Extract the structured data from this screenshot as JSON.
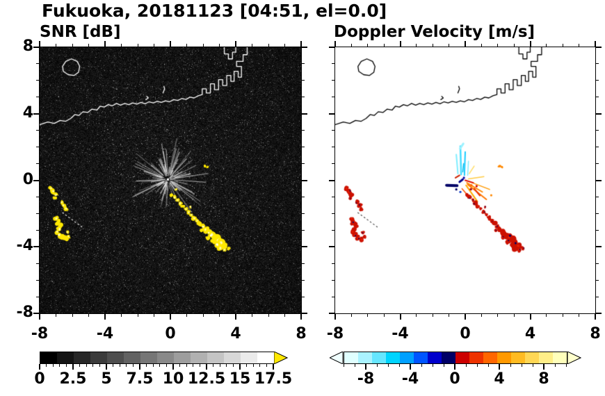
{
  "title": "Fukuoka, 20181123 [04:51, el=0.0]",
  "panels": {
    "snr": {
      "title": "SNR [dB]"
    },
    "velocity": {
      "title": "Doppler Velocity [m/s]"
    }
  },
  "axes": {
    "xlim": [
      -8,
      8
    ],
    "ylim": [
      -8,
      8
    ],
    "x_tick_values": [
      -8,
      -4,
      0,
      4,
      8
    ],
    "x_tick_labels": [
      "-8",
      "-4",
      "0",
      "4",
      "8"
    ],
    "y_tick_values": [
      8,
      4,
      0,
      -4,
      -8
    ],
    "y_tick_labels": [
      "8",
      "4",
      "0",
      "-4",
      "-8"
    ],
    "minor_tick_step": 1
  },
  "colorbars": {
    "snr": {
      "min": 0,
      "max": 17.5,
      "tick_values": [
        0,
        2.5,
        5,
        7.5,
        10,
        12.5,
        15,
        17.5
      ],
      "tick_labels": [
        "0",
        "2.5",
        "5",
        "7.5",
        "10",
        "12.5",
        "15",
        "17.5"
      ],
      "minor_step": 0.5,
      "band_count": 14,
      "start_color": "#000000",
      "end_color": "#ffffff",
      "over_arrow_color": "#ffe800"
    },
    "velocity": {
      "min": -10,
      "max": 10,
      "tick_values": [
        -8,
        -4,
        0,
        4,
        8
      ],
      "tick_labels": [
        "-8",
        "-4",
        "0",
        "4",
        "8"
      ],
      "minor_step": 1,
      "bands": [
        "#e0ffff",
        "#aaf2ff",
        "#66e6ff",
        "#00d4ff",
        "#00a0ff",
        "#0055ff",
        "#0000cc",
        "#000066",
        "#cc0000",
        "#ee3300",
        "#ff6600",
        "#ff9900",
        "#ffbb22",
        "#ffd755",
        "#ffee88",
        "#ffffbb"
      ],
      "under_arrow_color": "#f0ffff",
      "over_arrow_color": "#ffffcc"
    }
  },
  "chart_data": {
    "type": "heatmap",
    "site": "Fukuoka",
    "date": "20181123",
    "time": "04:51",
    "elevation": 0.0,
    "panels": [
      {
        "name": "SNR [dB]",
        "units": "dB",
        "range": [
          0,
          17.5
        ],
        "background": "#000000",
        "coast_color": "#ffffff",
        "echo_color": "#ffe800"
      },
      {
        "name": "Doppler Velocity [m/s]",
        "units": "m/s",
        "range": [
          -10,
          10
        ],
        "background": "#ffffff",
        "coast_color": "#000000",
        "echo_color": "#cc1100"
      }
    ],
    "radar_center": [
      -0.15,
      0.05
    ],
    "coastline": [
      [
        [
          -8.0,
          3.35
        ],
        [
          -7.5,
          3.5
        ],
        [
          -7.1,
          3.42
        ],
        [
          -6.75,
          3.6
        ],
        [
          -6.4,
          3.55
        ],
        [
          -6.1,
          3.72
        ],
        [
          -5.85,
          3.95
        ],
        [
          -5.6,
          3.9
        ],
        [
          -5.35,
          4.12
        ],
        [
          -5.05,
          4.08
        ],
        [
          -4.8,
          4.28
        ],
        [
          -4.5,
          4.22
        ],
        [
          -4.3,
          4.45
        ],
        [
          -4.05,
          4.4
        ],
        [
          -3.8,
          4.55
        ],
        [
          -3.55,
          4.48
        ],
        [
          -3.3,
          4.62
        ],
        [
          -3.05,
          4.52
        ],
        [
          -2.8,
          4.62
        ],
        [
          -2.55,
          4.55
        ],
        [
          -2.3,
          4.65
        ],
        [
          -2.05,
          4.58
        ],
        [
          -1.8,
          4.68
        ],
        [
          -1.55,
          4.6
        ],
        [
          -1.3,
          4.72
        ],
        [
          -1.05,
          4.65
        ],
        [
          -0.8,
          4.75
        ],
        [
          -0.55,
          4.68
        ],
        [
          -0.3,
          4.78
        ],
        [
          -0.05,
          4.72
        ],
        [
          0.2,
          4.85
        ],
        [
          0.45,
          4.8
        ],
        [
          0.7,
          4.92
        ],
        [
          0.95,
          4.86
        ],
        [
          1.2,
          5.0
        ],
        [
          1.45,
          4.95
        ],
        [
          1.7,
          5.08
        ],
        [
          1.95,
          5.15
        ],
        [
          1.95,
          5.5
        ],
        [
          2.2,
          5.5
        ],
        [
          2.2,
          5.25
        ],
        [
          2.45,
          5.25
        ],
        [
          2.45,
          5.8
        ],
        [
          2.7,
          5.8
        ],
        [
          2.7,
          5.45
        ],
        [
          2.95,
          5.45
        ],
        [
          2.95,
          6.05
        ],
        [
          3.2,
          6.05
        ],
        [
          3.2,
          5.7
        ],
        [
          3.45,
          5.7
        ],
        [
          3.45,
          6.3
        ],
        [
          3.7,
          6.3
        ],
        [
          3.7,
          5.95
        ],
        [
          3.9,
          5.95
        ],
        [
          3.9,
          6.55
        ],
        [
          4.15,
          6.55
        ],
        [
          4.15,
          6.2
        ],
        [
          4.35,
          6.2
        ],
        [
          4.35,
          6.85
        ],
        [
          4.05,
          6.85
        ],
        [
          4.05,
          7.15
        ],
        [
          4.45,
          7.15
        ],
        [
          4.45,
          7.55
        ],
        [
          4.7,
          7.55
        ],
        [
          4.7,
          8.0
        ]
      ],
      [
        [
          -6.55,
          6.55
        ],
        [
          -6.25,
          6.35
        ],
        [
          -5.9,
          6.3
        ],
        [
          -5.62,
          6.5
        ],
        [
          -5.55,
          6.85
        ],
        [
          -5.7,
          7.15
        ],
        [
          -6.05,
          7.3
        ],
        [
          -6.4,
          7.15
        ],
        [
          -6.6,
          6.85
        ],
        [
          -6.55,
          6.55
        ]
      ],
      [
        [
          -0.45,
          5.25
        ],
        [
          -0.35,
          5.5
        ],
        [
          -0.4,
          5.65
        ]
      ],
      [
        [
          -1.5,
          4.85
        ],
        [
          -1.35,
          4.95
        ],
        [
          -1.45,
          5.05
        ]
      ],
      [
        [
          3.3,
          8.0
        ],
        [
          3.3,
          7.6
        ],
        [
          3.55,
          7.6
        ],
        [
          3.55,
          7.3
        ],
        [
          3.8,
          7.3
        ],
        [
          3.8,
          7.7
        ],
        [
          4.0,
          7.7
        ],
        [
          4.0,
          8.0
        ]
      ]
    ],
    "echo_cluster_west": [
      [
        -7.3,
        -0.5,
        0.13
      ],
      [
        -7.15,
        -0.68,
        0.15
      ],
      [
        -7.0,
        -0.88,
        0.13
      ],
      [
        -7.08,
        -1.08,
        0.11
      ],
      [
        -6.65,
        -1.32,
        0.11
      ],
      [
        -6.5,
        -1.5,
        0.13
      ],
      [
        -6.38,
        -1.7,
        0.12
      ],
      [
        -6.98,
        -2.3,
        0.13
      ],
      [
        -6.88,
        -2.52,
        0.16
      ],
      [
        -6.7,
        -2.72,
        0.15
      ],
      [
        -6.78,
        -2.94,
        0.14
      ],
      [
        -6.92,
        -3.1,
        0.13
      ],
      [
        -6.78,
        -3.3,
        0.15
      ],
      [
        -6.58,
        -3.46,
        0.16
      ],
      [
        -6.36,
        -3.56,
        0.13
      ],
      [
        -6.22,
        -3.38,
        0.1
      ],
      [
        -6.3,
        -3.12,
        0.1
      ]
    ],
    "echo_band_main": [
      [
        0.08,
        -0.88,
        0.1
      ],
      [
        0.26,
        -1.04,
        0.12
      ],
      [
        0.44,
        -1.2,
        0.1
      ],
      [
        0.6,
        -1.38,
        0.13
      ],
      [
        0.78,
        -1.54,
        0.11
      ],
      [
        0.95,
        -1.73,
        0.1
      ],
      [
        1.12,
        -1.93,
        0.12
      ],
      [
        1.3,
        -2.08,
        0.1
      ],
      [
        1.46,
        -2.28,
        0.13
      ],
      [
        1.64,
        -2.44,
        0.11
      ],
      [
        1.82,
        -2.63,
        0.14
      ],
      [
        2.0,
        -2.79,
        0.12
      ],
      [
        2.16,
        -2.98,
        0.16
      ],
      [
        2.34,
        -3.13,
        0.18
      ],
      [
        2.54,
        -3.28,
        0.2
      ],
      [
        2.74,
        -3.44,
        0.22
      ],
      [
        2.94,
        -3.6,
        0.2
      ],
      [
        3.1,
        -3.78,
        0.22
      ],
      [
        3.26,
        -3.94,
        0.18
      ],
      [
        2.62,
        -3.68,
        0.15
      ],
      [
        2.86,
        -3.88,
        0.17
      ],
      [
        3.06,
        -4.08,
        0.16
      ],
      [
        3.3,
        -4.18,
        0.12
      ],
      [
        3.56,
        -4.08,
        0.1
      ],
      [
        2.3,
        -3.44,
        0.12
      ],
      [
        1.9,
        -3.0,
        0.1
      ],
      [
        0.35,
        -0.55,
        0.07
      ],
      [
        1.22,
        -1.6,
        0.07
      ]
    ],
    "extra_echoes": [
      [
        2.1,
        0.85,
        0.08
      ],
      [
        2.26,
        0.8,
        0.07
      ]
    ],
    "dotted_track": [
      [
        -6.6,
        -1.95
      ],
      [
        -5.35,
        -2.85
      ]
    ],
    "velocity_streaks": [
      [
        -0.25,
        0.35,
        -0.3,
        2.05,
        "#45ddff",
        2.5
      ],
      [
        -0.45,
        0.4,
        -0.55,
        1.55,
        "#7feeff",
        2
      ],
      [
        -0.05,
        0.3,
        0.0,
        1.7,
        "#18ccff",
        2
      ],
      [
        0.15,
        0.3,
        0.2,
        1.15,
        "#7feeff",
        1.5
      ],
      [
        -0.32,
        1.9,
        -0.12,
        2.2,
        "#9cf2ff",
        3
      ],
      [
        -0.15,
        0.5,
        -0.1,
        1.0,
        "#00bbee",
        1.5
      ],
      [
        0.1,
        -0.15,
        1.05,
        -0.7,
        "#ff8800",
        2
      ],
      [
        0.15,
        -0.25,
        1.3,
        -1.15,
        "#ff7700",
        2
      ],
      [
        0.05,
        -0.3,
        0.75,
        -1.28,
        "#ffaa00",
        2
      ],
      [
        0.3,
        -0.1,
        1.5,
        -0.55,
        "#ff9900",
        1.5
      ],
      [
        0.2,
        0.08,
        1.15,
        0.22,
        "#ffcc44",
        1.5
      ],
      [
        0.25,
        0.4,
        0.55,
        0.85,
        "#ffdd66",
        1.5
      ],
      [
        -1.15,
        -0.3,
        -0.5,
        -0.32,
        "#000066",
        4
      ],
      [
        -0.35,
        -0.1,
        -0.15,
        0.05,
        "#000088",
        3
      ],
      [
        -0.6,
        0.15,
        -0.35,
        0.3,
        "#cc2200",
        2
      ],
      [
        0.0,
        0.0,
        0.5,
        -0.15,
        "#dd1100",
        2
      ],
      [
        -0.2,
        -0.5,
        0.1,
        -0.85,
        "#ff5500",
        1.5
      ],
      [
        0.55,
        -0.5,
        0.9,
        -0.92,
        "#ee3300",
        2
      ]
    ],
    "velocity_dots": [
      [
        -0.08,
        0.15,
        "#0000aa"
      ],
      [
        0.38,
        -0.3,
        "#ff6600"
      ],
      [
        -0.55,
        -0.55,
        "#000066"
      ],
      [
        0.7,
        -0.35,
        "#cc0000"
      ],
      [
        1.6,
        -0.9,
        "#ff8800"
      ],
      [
        -0.3,
        -0.7,
        "#0033cc"
      ]
    ]
  }
}
